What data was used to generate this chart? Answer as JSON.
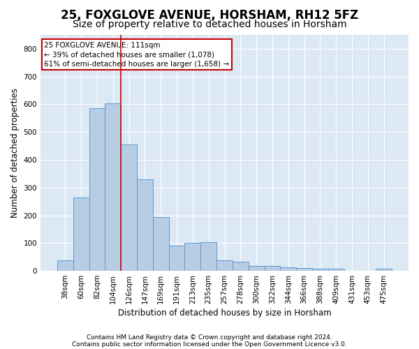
{
  "title": "25, FOXGLOVE AVENUE, HORSHAM, RH12 5FZ",
  "subtitle": "Size of property relative to detached houses in Horsham",
  "xlabel": "Distribution of detached houses by size in Horsham",
  "ylabel": "Number of detached properties",
  "categories": [
    "38sqm",
    "60sqm",
    "82sqm",
    "104sqm",
    "126sqm",
    "147sqm",
    "169sqm",
    "191sqm",
    "213sqm",
    "235sqm",
    "257sqm",
    "278sqm",
    "300sqm",
    "322sqm",
    "344sqm",
    "366sqm",
    "388sqm",
    "409sqm",
    "431sqm",
    "453sqm",
    "475sqm"
  ],
  "values": [
    37,
    265,
    585,
    603,
    455,
    330,
    195,
    90,
    100,
    103,
    37,
    32,
    17,
    17,
    12,
    10,
    7,
    7,
    0,
    0,
    7
  ],
  "bar_color": "#b8cce4",
  "bar_edge_color": "#5b9bd5",
  "background_color": "#dde8f5",
  "grid_color": "#ffffff",
  "annotation_text": "25 FOXGLOVE AVENUE: 111sqm\n← 39% of detached houses are smaller (1,078)\n61% of semi-detached houses are larger (1,658) →",
  "annotation_box_color": "#ffffff",
  "annotation_box_edge": "#cc0000",
  "footnote1": "Contains HM Land Registry data © Crown copyright and database right 2024.",
  "footnote2": "Contains public sector information licensed under the Open Government Licence v3.0.",
  "ylim": [
    0,
    850
  ],
  "yticks": [
    0,
    100,
    200,
    300,
    400,
    500,
    600,
    700,
    800
  ],
  "title_fontsize": 12,
  "subtitle_fontsize": 10,
  "axis_label_fontsize": 8.5,
  "tick_fontsize": 7.5,
  "footnote_fontsize": 6.5
}
